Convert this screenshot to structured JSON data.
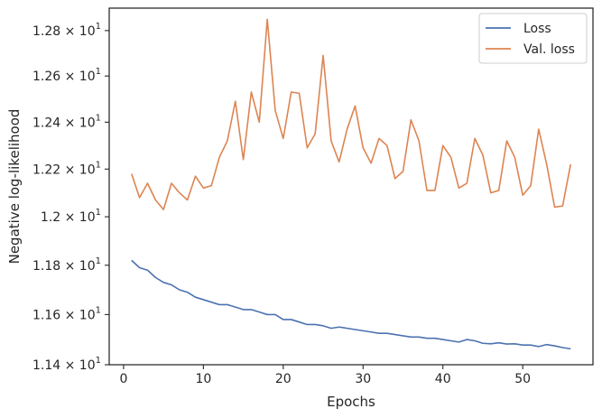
{
  "chart_data": {
    "type": "line",
    "xlabel": "Epochs",
    "ylabel": "Negative log-likelihood",
    "xlim": [
      -1.8,
      58.8
    ],
    "ylim": [
      11.4,
      12.9
    ],
    "yscale": "log",
    "x_ticks": [
      0,
      10,
      20,
      30,
      40,
      50
    ],
    "x_tick_labels": [
      "0",
      "10",
      "20",
      "30",
      "40",
      "50"
    ],
    "y_ticks": [
      11.4,
      11.6,
      11.8,
      12.0,
      12.2,
      12.4,
      12.6,
      12.8
    ],
    "y_tick_labels": [
      {
        "mantissa": "1.14",
        "base": "10",
        "exp": "1"
      },
      {
        "mantissa": "1.16",
        "base": "10",
        "exp": "1"
      },
      {
        "mantissa": "1.18",
        "base": "10",
        "exp": "1"
      },
      {
        "mantissa": "1.2",
        "base": "10",
        "exp": "1"
      },
      {
        "mantissa": "1.22",
        "base": "10",
        "exp": "1"
      },
      {
        "mantissa": "1.24",
        "base": "10",
        "exp": "1"
      },
      {
        "mantissa": "1.26",
        "base": "10",
        "exp": "1"
      },
      {
        "mantissa": "1.28",
        "base": "10",
        "exp": "1"
      }
    ],
    "legend_position": "top-right",
    "grid": false,
    "series": [
      {
        "name": "Loss",
        "color": "#4c72b0",
        "x": [
          1,
          2,
          3,
          4,
          5,
          6,
          7,
          8,
          9,
          10,
          11,
          12,
          13,
          14,
          15,
          16,
          17,
          18,
          19,
          20,
          21,
          22,
          23,
          24,
          25,
          26,
          27,
          28,
          29,
          30,
          31,
          32,
          33,
          34,
          35,
          36,
          37,
          38,
          39,
          40,
          41,
          42,
          43,
          44,
          45,
          46,
          47,
          48,
          49,
          50,
          51,
          52,
          53,
          54,
          55,
          56
        ],
        "y": [
          11.82,
          11.79,
          11.78,
          11.75,
          11.73,
          11.72,
          11.7,
          11.69,
          11.67,
          11.66,
          11.65,
          11.64,
          11.64,
          11.63,
          11.62,
          11.62,
          11.61,
          11.6,
          11.6,
          11.58,
          11.58,
          11.57,
          11.56,
          11.56,
          11.555,
          11.545,
          11.55,
          11.545,
          11.54,
          11.535,
          11.53,
          11.525,
          11.525,
          11.52,
          11.515,
          11.51,
          11.51,
          11.505,
          11.505,
          11.5,
          11.495,
          11.49,
          11.5,
          11.495,
          11.485,
          11.483,
          11.487,
          11.482,
          11.483,
          11.478,
          11.478,
          11.472,
          11.48,
          11.475,
          11.468,
          11.463
        ]
      },
      {
        "name": "Val. loss",
        "color": "#dd8452",
        "x": [
          1,
          2,
          3,
          4,
          5,
          6,
          7,
          8,
          9,
          10,
          11,
          12,
          13,
          14,
          15,
          16,
          17,
          18,
          19,
          20,
          21,
          22,
          23,
          24,
          25,
          26,
          27,
          28,
          29,
          30,
          31,
          32,
          33,
          34,
          35,
          36,
          37,
          38,
          39,
          40,
          41,
          42,
          43,
          44,
          45,
          46,
          47,
          48,
          49,
          50,
          51,
          52,
          53,
          54,
          55,
          56
        ],
        "y": [
          12.18,
          12.08,
          12.14,
          12.07,
          12.03,
          12.14,
          12.1,
          12.07,
          12.17,
          12.12,
          12.13,
          12.25,
          12.32,
          12.49,
          12.24,
          12.53,
          12.4,
          12.85,
          12.45,
          12.33,
          12.53,
          12.525,
          12.29,
          12.35,
          12.69,
          12.32,
          12.23,
          12.37,
          12.47,
          12.29,
          12.225,
          12.33,
          12.3,
          12.16,
          12.19,
          12.41,
          12.32,
          12.11,
          12.11,
          12.3,
          12.25,
          12.12,
          12.14,
          12.33,
          12.26,
          12.1,
          12.11,
          12.32,
          12.25,
          12.09,
          12.13,
          12.37,
          12.22,
          12.04,
          12.045,
          12.22
        ]
      }
    ]
  }
}
